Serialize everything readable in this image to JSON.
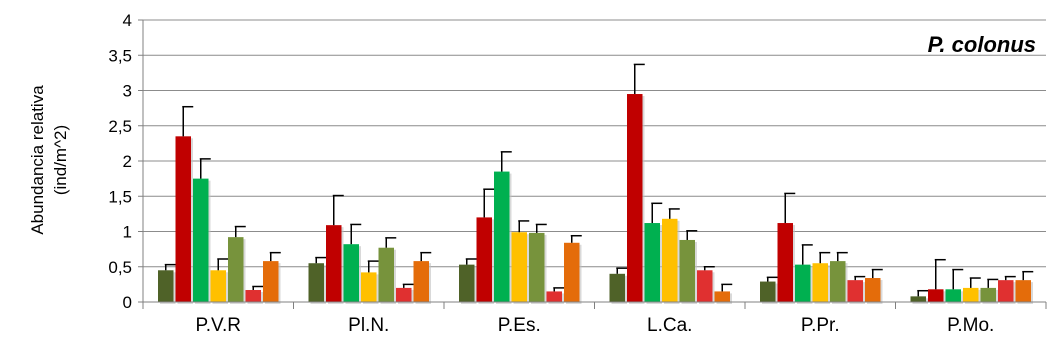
{
  "chart_data": {
    "type": "bar",
    "title": "",
    "annotation": "P. colonus",
    "ylabel_lines": [
      "Abundancia relativa",
      "(ind/m^2)"
    ],
    "xlabel": "",
    "ylim": [
      0,
      4
    ],
    "yticks": [
      "0",
      "0,5",
      "1",
      "1,5",
      "2",
      "2,5",
      "3",
      "3,5",
      "4"
    ],
    "grid": true,
    "legend": "none",
    "categories": [
      "P.V.R",
      "Pl.N.",
      "P.Es.",
      "L.Ca.",
      "P.Pr.",
      "P.Mo."
    ],
    "series": [
      {
        "color": "#4f6228",
        "values": [
          0.45,
          0.55,
          0.53,
          0.4,
          0.29,
          0.08
        ],
        "errors": [
          0.08,
          0.08,
          0.08,
          0.08,
          0.06,
          0.08
        ]
      },
      {
        "color": "#c00000",
        "values": [
          2.35,
          1.09,
          1.2,
          2.95,
          1.12,
          0.18
        ],
        "errors": [
          0.42,
          0.42,
          0.4,
          0.42,
          0.42,
          0.42
        ]
      },
      {
        "color": "#00b050",
        "values": [
          1.75,
          0.82,
          1.85,
          1.12,
          0.53,
          0.18
        ],
        "errors": [
          0.28,
          0.28,
          0.28,
          0.28,
          0.28,
          0.28
        ]
      },
      {
        "color": "#ffc000",
        "values": [
          0.45,
          0.42,
          0.99,
          1.18,
          0.55,
          0.2
        ],
        "errors": [
          0.16,
          0.16,
          0.16,
          0.14,
          0.15,
          0.14
        ]
      },
      {
        "color": "#77933c",
        "values": [
          0.92,
          0.77,
          0.98,
          0.88,
          0.58,
          0.2
        ],
        "errors": [
          0.15,
          0.14,
          0.12,
          0.13,
          0.12,
          0.12
        ]
      },
      {
        "color": "#e03030",
        "values": [
          0.17,
          0.2,
          0.15,
          0.45,
          0.31,
          0.31
        ],
        "errors": [
          0.05,
          0.05,
          0.05,
          0.05,
          0.05,
          0.05
        ]
      },
      {
        "color": "#e46c0a",
        "values": [
          0.58,
          0.58,
          0.84,
          0.15,
          0.34,
          0.31
        ],
        "errors": [
          0.12,
          0.12,
          0.1,
          0.1,
          0.12,
          0.12
        ]
      }
    ]
  }
}
